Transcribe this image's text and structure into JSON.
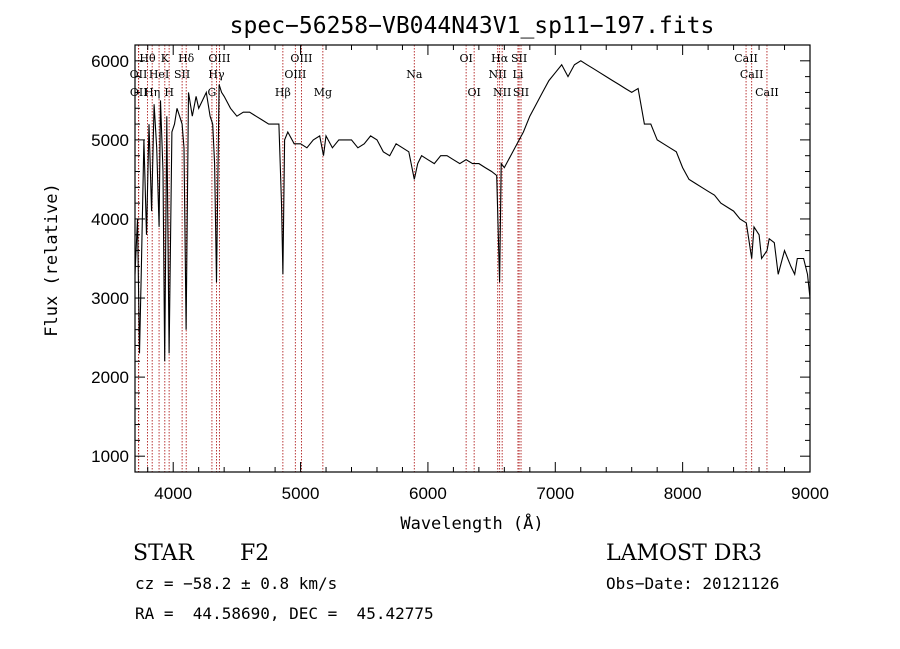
{
  "chart_data": {
    "type": "line",
    "title": "spec−56258−VB044N43V1_sp11−197.fits",
    "xlabel": "Wavelength (Å)",
    "ylabel": "Flux (relative)",
    "xlim": [
      3700,
      9000
    ],
    "ylim": [
      800,
      6200
    ],
    "x_ticks": [
      4000,
      5000,
      6000,
      7000,
      8000,
      9000
    ],
    "y_ticks": [
      1000,
      2000,
      3000,
      4000,
      5000,
      6000
    ],
    "x_tick_labels": [
      "4000",
      "5000",
      "6000",
      "7000",
      "8000",
      "9000"
    ],
    "y_tick_labels": [
      "1000",
      "2000",
      "3000",
      "4000",
      "5000",
      "6000"
    ],
    "series": [
      {
        "name": "spectrum",
        "x": [
          3700,
          3720,
          3735,
          3750,
          3770,
          3790,
          3810,
          3830,
          3850,
          3870,
          3889,
          3900,
          3920,
          3933,
          3950,
          3968,
          3990,
          4010,
          4030,
          4050,
          4070,
          4085,
          4101,
          4120,
          4150,
          4180,
          4200,
          4230,
          4260,
          4290,
          4310,
          4325,
          4340,
          4360,
          4380,
          4400,
          4450,
          4500,
          4550,
          4600,
          4650,
          4700,
          4750,
          4800,
          4830,
          4850,
          4861,
          4875,
          4900,
          4950,
          5000,
          5050,
          5100,
          5150,
          5180,
          5200,
          5250,
          5300,
          5350,
          5400,
          5450,
          5500,
          5550,
          5600,
          5650,
          5700,
          5750,
          5800,
          5850,
          5893,
          5920,
          5950,
          6000,
          6050,
          6100,
          6150,
          6200,
          6250,
          6300,
          6350,
          6400,
          6450,
          6500,
          6540,
          6563,
          6575,
          6600,
          6650,
          6700,
          6750,
          6800,
          6850,
          6900,
          6950,
          7000,
          7050,
          7100,
          7150,
          7200,
          7250,
          7300,
          7350,
          7400,
          7450,
          7500,
          7550,
          7600,
          7650,
          7700,
          7750,
          7800,
          7850,
          7900,
          7950,
          8000,
          8050,
          8100,
          8150,
          8200,
          8250,
          8300,
          8350,
          8400,
          8450,
          8500,
          8542,
          8560,
          8600,
          8620,
          8662,
          8680,
          8720,
          8750,
          8800,
          8850,
          8880,
          8900,
          8950,
          8980,
          9000
        ],
        "values": [
          3300,
          4000,
          2300,
          3400,
          5000,
          3800,
          5200,
          4100,
          5450,
          4900,
          3900,
          5500,
          4600,
          2200,
          5300,
          2300,
          5100,
          5200,
          5400,
          5300,
          5200,
          4900,
          2600,
          5600,
          5300,
          5550,
          5400,
          5500,
          5600,
          5300,
          5200,
          4700,
          3200,
          5700,
          5600,
          5550,
          5400,
          5300,
          5350,
          5350,
          5300,
          5250,
          5200,
          5200,
          5200,
          4200,
          3300,
          5000,
          5100,
          4950,
          4950,
          4900,
          5000,
          5050,
          4800,
          5050,
          4900,
          5000,
          5000,
          5000,
          4900,
          4950,
          5050,
          5000,
          4850,
          4800,
          4950,
          4900,
          4850,
          4500,
          4700,
          4800,
          4750,
          4700,
          4800,
          4800,
          4750,
          4700,
          4750,
          4700,
          4700,
          4650,
          4600,
          4550,
          3200,
          4700,
          4650,
          4800,
          4950,
          5100,
          5300,
          5450,
          5600,
          5750,
          5850,
          5950,
          5800,
          5950,
          6000,
          5950,
          5900,
          5850,
          5800,
          5750,
          5700,
          5650,
          5600,
          5650,
          5200,
          5200,
          5000,
          4950,
          4900,
          4850,
          4650,
          4500,
          4450,
          4400,
          4350,
          4300,
          4200,
          4150,
          4100,
          4000,
          3950,
          3500,
          3900,
          3800,
          3500,
          3600,
          3750,
          3700,
          3300,
          3600,
          3400,
          3300,
          3500,
          3500,
          3300,
          3000
        ]
      }
    ],
    "line_annotations": [
      {
        "label": "Hθ",
        "wavelength": 3798,
        "row": 1
      },
      {
        "label": "OII",
        "wavelength": 3727,
        "row": 2
      },
      {
        "label": "OII",
        "wavelength": 3729,
        "row": 3
      },
      {
        "label": "Hη",
        "wavelength": 3835,
        "row": 3
      },
      {
        "label": "HeI",
        "wavelength": 3889,
        "row": 2
      },
      {
        "label": "K",
        "wavelength": 3934,
        "row": 1
      },
      {
        "label": "H",
        "wavelength": 3968,
        "row": 3
      },
      {
        "label": "SII",
        "wavelength": 4070,
        "row": 2
      },
      {
        "label": "Hδ",
        "wavelength": 4102,
        "row": 1
      },
      {
        "label": "G",
        "wavelength": 4304,
        "row": 3
      },
      {
        "label": "Hγ",
        "wavelength": 4340,
        "row": 2
      },
      {
        "label": "OIII",
        "wavelength": 4363,
        "row": 1
      },
      {
        "label": "Hβ",
        "wavelength": 4861,
        "row": 3
      },
      {
        "label": "OIII",
        "wavelength": 4959,
        "row": 2
      },
      {
        "label": "OIII",
        "wavelength": 5007,
        "row": 1
      },
      {
        "label": "Mg",
        "wavelength": 5175,
        "row": 3
      },
      {
        "label": "Na",
        "wavelength": 5893,
        "row": 2
      },
      {
        "label": "OI",
        "wavelength": 6300,
        "row": 1
      },
      {
        "label": "OI",
        "wavelength": 6363,
        "row": 3
      },
      {
        "label": "NII",
        "wavelength": 6548,
        "row": 2
      },
      {
        "label": "NII",
        "wavelength": 6583,
        "row": 3
      },
      {
        "label": "Hα",
        "wavelength": 6563,
        "row": 1
      },
      {
        "label": "Li",
        "wavelength": 6707,
        "row": 2
      },
      {
        "label": "SII",
        "wavelength": 6716,
        "row": 1
      },
      {
        "label": "SII",
        "wavelength": 6731,
        "row": 3
      },
      {
        "label": "CaII",
        "wavelength": 8498,
        "row": 1
      },
      {
        "label": "CaII",
        "wavelength": 8542,
        "row": 2
      },
      {
        "label": "CaII",
        "wavelength": 8662,
        "row": 3
      }
    ],
    "grid": false,
    "legend": "none"
  },
  "info": {
    "object_class": "STAR",
    "subclass": "F2",
    "survey": "LAMOST DR3",
    "cz": "cz = −58.2 ± 0.8 km/s",
    "obs_date": "Obs−Date: 20121126",
    "coords": "RA =  44.58690, DEC =  45.42775"
  },
  "colors": {
    "spectrum": "#000000",
    "line_marker": "#b22222",
    "axis": "#000000"
  }
}
